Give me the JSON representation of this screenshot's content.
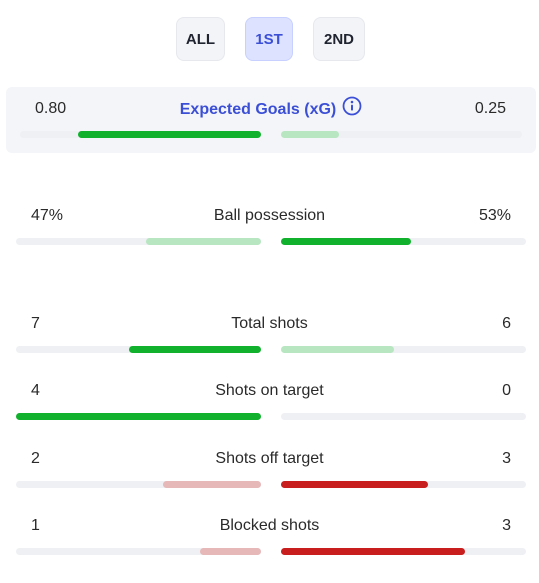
{
  "tabs": [
    {
      "label": "ALL",
      "active": false
    },
    {
      "label": "1ST",
      "active": true
    },
    {
      "label": "2ND",
      "active": false
    }
  ],
  "xg": {
    "title": "Expected Goals (xG)",
    "home_value": "0.80",
    "away_value": "0.25",
    "home_share": 0.76,
    "away_share": 0.24,
    "home_color": "#11b12e",
    "away_color": "#b8e6c1",
    "icon": "info-icon"
  },
  "stats": [
    {
      "label": "Ball possession",
      "home": "47%",
      "away": "53%",
      "home_share": 0.47,
      "away_share": 0.53,
      "home_color": "#b8e6c1",
      "away_color": "#11b12e"
    },
    {
      "label": "Total shots",
      "home": "7",
      "away": "6",
      "home_share": 0.54,
      "away_share": 0.46,
      "home_color": "#11b12e",
      "away_color": "#b8e6c1"
    },
    {
      "label": "Shots on target",
      "home": "4",
      "away": "0",
      "home_share": 1.0,
      "away_share": 0.0,
      "home_color": "#11b12e",
      "away_color": "#b8e6c1"
    },
    {
      "label": "Shots off target",
      "home": "2",
      "away": "3",
      "home_share": 0.4,
      "away_share": 0.6,
      "home_color": "#e6b8b8",
      "away_color": "#c81e1e"
    },
    {
      "label": "Blocked shots",
      "home": "1",
      "away": "3",
      "home_share": 0.25,
      "away_share": 0.75,
      "home_color": "#e6b8b8",
      "away_color": "#c81e1e"
    }
  ],
  "colors": {
    "accent": "#3b4fd6",
    "track": "#eef0f3"
  }
}
